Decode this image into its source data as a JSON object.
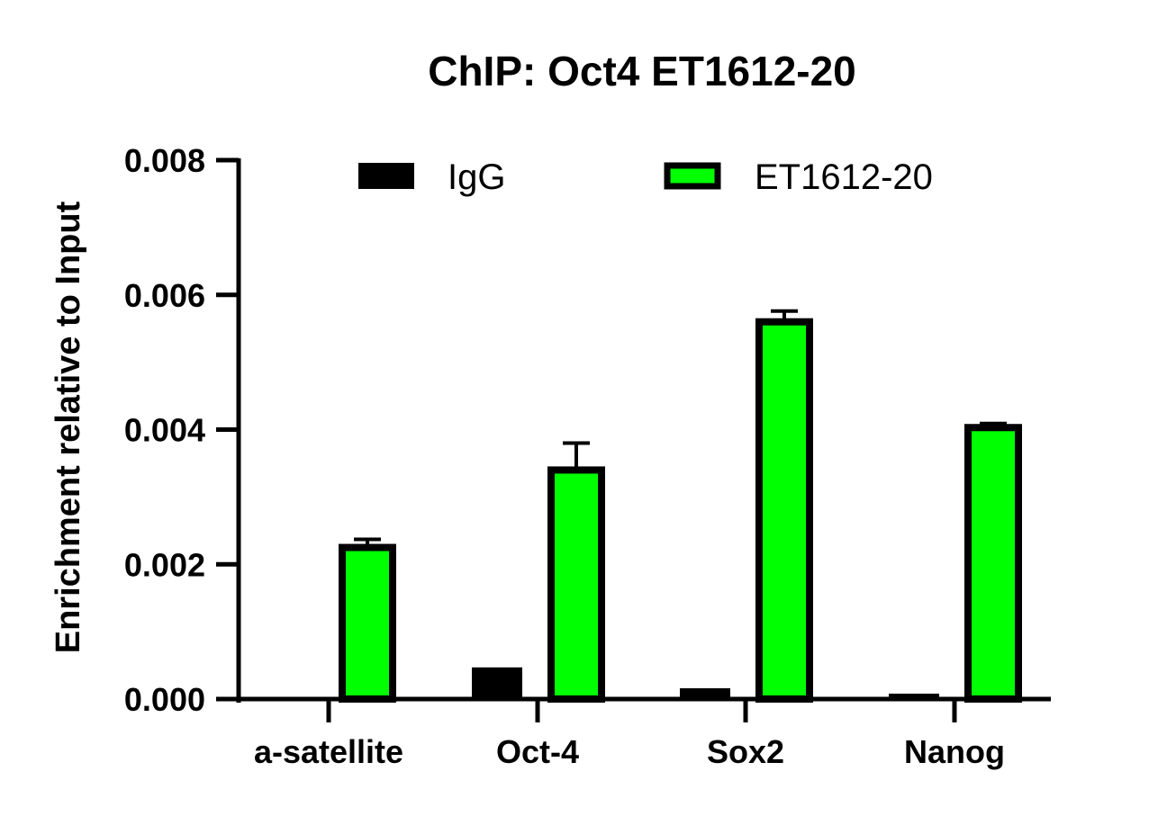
{
  "chart_data": {
    "type": "bar",
    "title": "ChIP: Oct4 ET1612-20",
    "xlabel": "",
    "ylabel": "Enrichment relative to Input",
    "ylim": [
      0,
      0.008
    ],
    "yticks": [
      "0.000",
      "0.002",
      "0.004",
      "0.006",
      "0.008"
    ],
    "categories": [
      "a-satellite",
      "Oct-4",
      "Sox2",
      "Nanog"
    ],
    "series": [
      {
        "name": "IgG",
        "values": [
          0.0,
          0.00047,
          0.00016,
          8e-05
        ],
        "error": [
          0,
          0,
          0,
          0
        ],
        "color": "#000000"
      },
      {
        "name": "ET1612-20",
        "values": [
          0.00225,
          0.0034,
          0.0056,
          0.00403
        ],
        "error": [
          0.00012,
          0.0004,
          0.00016,
          6e-05
        ],
        "color": "#00ff00"
      }
    ],
    "legend_position": "top",
    "grid": false
  }
}
